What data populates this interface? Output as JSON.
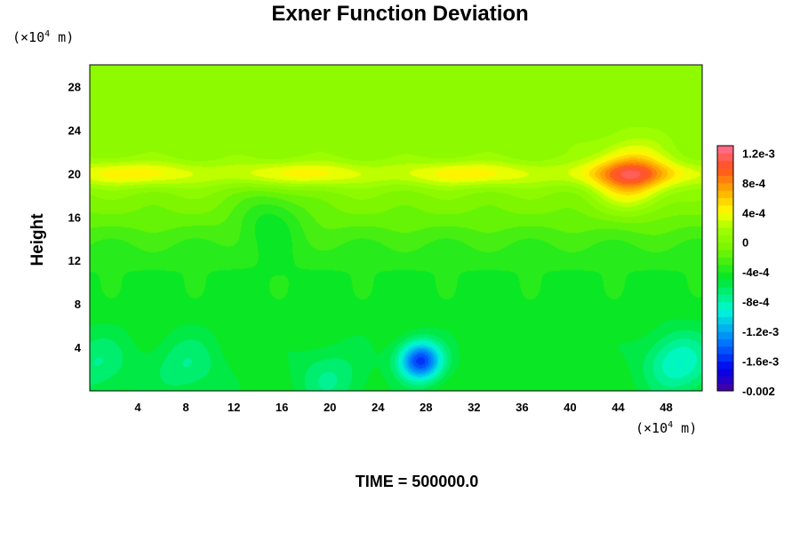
{
  "chart_data": {
    "type": "heatmap",
    "title": "Exner Function Deviation",
    "ylabel": "Height",
    "xlabel": "",
    "y_unit": "(×10",
    "x_unit": "(×10",
    "unit_exponent": "4",
    "unit_suffix": " m)",
    "footer": "TIME = 500000.0",
    "xlim": [
      0,
      51
    ],
    "ylim": [
      0,
      30
    ],
    "x_ticks": [
      "4",
      "8",
      "12",
      "16",
      "20",
      "24",
      "28",
      "32",
      "36",
      "40",
      "44",
      "48"
    ],
    "x_tick_values": [
      4,
      8,
      12,
      16,
      20,
      24,
      28,
      32,
      36,
      40,
      44,
      48
    ],
    "y_ticks": [
      "4",
      "8",
      "12",
      "16",
      "20",
      "24",
      "28"
    ],
    "y_tick_values": [
      4,
      8,
      12,
      16,
      20,
      24,
      28
    ],
    "colorbar": {
      "vmin": -0.002,
      "vmax": 0.0013,
      "labels": [
        "1.2e-3",
        "8e-4",
        "4e-4",
        "0",
        "-4e-4",
        "-8e-4",
        "-1.2e-3",
        "-1.6e-3",
        "-0.002"
      ],
      "label_values": [
        0.0012,
        0.0008,
        0.0004,
        0,
        -0.0004,
        -0.0008,
        -0.0012,
        -0.0016,
        -0.002
      ],
      "levels": 33
    },
    "field": {
      "upper_value": 5e-05,
      "layer": {
        "height": 20,
        "value": 0.0004
      },
      "lower_value": -0.00045,
      "features": [
        {
          "x": 27.5,
          "y": 2.8,
          "value": -0.00155
        },
        {
          "x": 49,
          "y": 2.6,
          "value": -0.0009
        },
        {
          "x": 8,
          "y": 2.3,
          "value": -0.0007
        },
        {
          "x": 0.5,
          "y": 2.5,
          "value": -0.0007
        },
        {
          "x": 20,
          "y": 1.2,
          "value": -0.0007
        },
        {
          "x": 15,
          "y": 16.2,
          "value": -0.0003
        },
        {
          "x": 45,
          "y": 19.8,
          "value": 0.0007
        }
      ]
    }
  }
}
